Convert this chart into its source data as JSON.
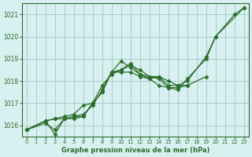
{
  "background_color": "#d8f0f0",
  "grid_color": "#aacccc",
  "line_color": "#2d6e2d",
  "xlabel": "Graphe pression niveau de la mer (hPa)",
  "ylim": [
    1015.5,
    1021.5
  ],
  "xlim": [
    -0.5,
    23.5
  ],
  "yticks": [
    1016,
    1017,
    1018,
    1019,
    1020,
    1021
  ],
  "xticks": [
    0,
    1,
    2,
    3,
    4,
    5,
    6,
    7,
    8,
    9,
    10,
    11,
    12,
    13,
    14,
    15,
    16,
    17,
    18,
    19,
    20,
    21,
    22,
    23
  ],
  "series": [
    [
      1015.8,
      null,
      1016.2,
      1016.3,
      1016.4,
      1016.5,
      1016.9,
      1017.0,
      1017.8,
      1018.3,
      1018.5,
      1018.8,
      1018.3,
      1018.1,
      1017.8,
      1017.7,
      1017.6,
      1018.1,
      null,
      1019.0,
      1020.0,
      null,
      null,
      1021.3
    ],
    [
      1015.8,
      null,
      1016.1,
      1015.8,
      1016.3,
      1016.4,
      1016.4,
      1017.0,
      1017.5,
      1018.4,
      1018.9,
      1018.6,
      1018.3,
      1018.2,
      1018.2,
      1018.0,
      1017.8,
      1017.8,
      null,
      1018.2,
      null,
      null,
      null,
      null
    ],
    [
      1015.8,
      null,
      1016.2,
      1015.6,
      1016.3,
      1016.4,
      1016.5,
      1016.9,
      1017.6,
      1018.4,
      1018.5,
      1018.7,
      1018.5,
      1018.2,
      1018.1,
      1017.7,
      1017.7,
      1017.8,
      null,
      null,
      null,
      null,
      null,
      null
    ],
    [
      1015.8,
      null,
      1016.2,
      1016.3,
      1016.3,
      1016.3,
      1016.4,
      1017.0,
      1017.5,
      1018.4,
      1018.4,
      1018.4,
      1018.2,
      1018.1,
      1018.2,
      1017.8,
      1017.8,
      1018.0,
      null,
      1019.1,
      1020.0,
      null,
      1021.0,
      1021.3
    ]
  ]
}
